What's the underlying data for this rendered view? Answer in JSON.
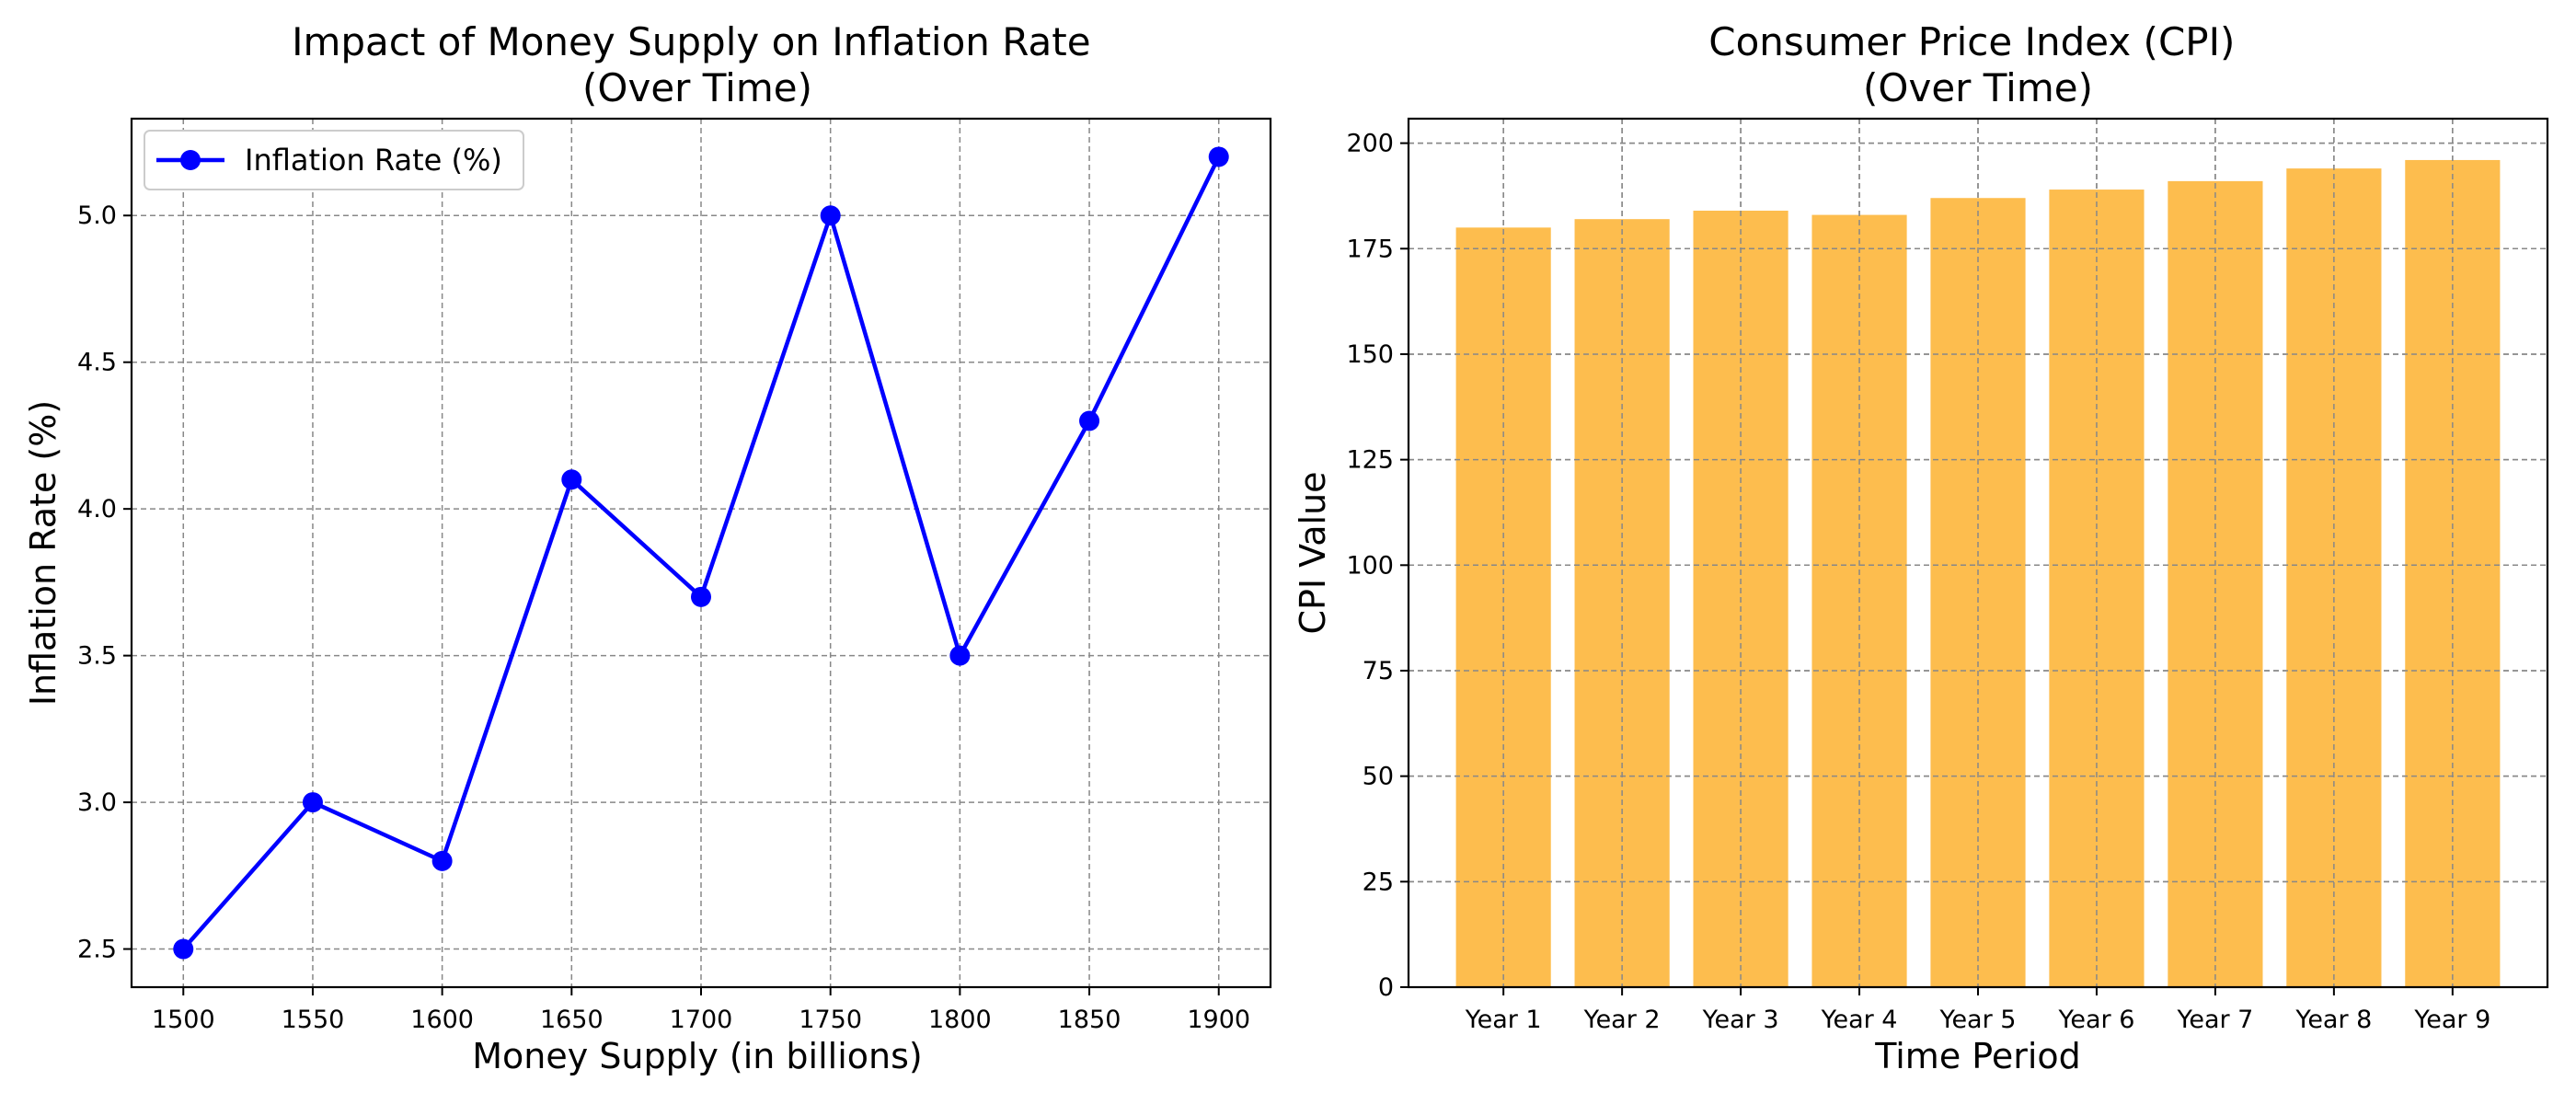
{
  "chart_data": [
    {
      "type": "line",
      "title": "Impact of Money Supply on Inflation Rate\n(Over Time)",
      "xlabel": "Money Supply (in billions)",
      "ylabel": "Inflation Rate (%)",
      "x": [
        1500,
        1550,
        1600,
        1650,
        1700,
        1750,
        1800,
        1850,
        1900
      ],
      "xticks": [
        1500,
        1550,
        1600,
        1650,
        1700,
        1750,
        1800,
        1850,
        1900
      ],
      "xlim": [
        1480,
        1920
      ],
      "yticks": [
        2.5,
        3.0,
        3.5,
        4.0,
        4.5,
        5.0
      ],
      "ylim": [
        2.37,
        5.33
      ],
      "grid": true,
      "legend_position": "upper-left",
      "series": [
        {
          "name": "Inflation Rate (%)",
          "values": [
            2.5,
            3.0,
            2.8,
            4.1,
            3.7,
            5.0,
            3.5,
            4.3,
            5.2
          ],
          "color": "#0000ff",
          "marker": "circle"
        }
      ]
    },
    {
      "type": "bar",
      "title": "Consumer Price Index (CPI)\n(Over Time)",
      "xlabel": "Time Period",
      "ylabel": "CPI Value",
      "categories": [
        "Year 1",
        "Year 2",
        "Year 3",
        "Year 4",
        "Year 5",
        "Year 6",
        "Year 7",
        "Year 8",
        "Year 9"
      ],
      "values": [
        180,
        182,
        184,
        183,
        187,
        189,
        191,
        194,
        196
      ],
      "yticks": [
        0,
        25,
        50,
        75,
        100,
        125,
        150,
        175,
        200
      ],
      "ylim": [
        0,
        205.8
      ],
      "grid": true,
      "color": "#fdbd4e"
    }
  ]
}
